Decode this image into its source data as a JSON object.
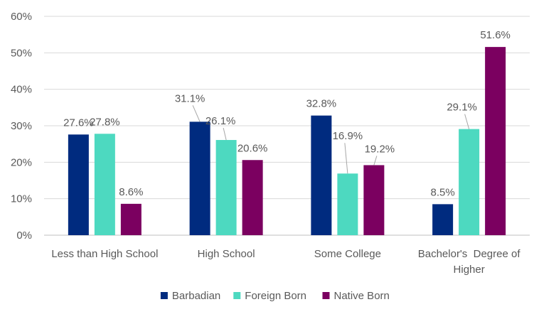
{
  "chart_data": {
    "type": "bar",
    "title": "",
    "xlabel": "",
    "ylabel": "",
    "ylim": [
      0,
      60
    ],
    "ytick_step": 10,
    "y_format": "percent",
    "grid": true,
    "legend_position": "bottom",
    "categories": [
      [
        "Less than High School"
      ],
      [
        "High School"
      ],
      [
        "Some College"
      ],
      [
        "Bachelor's  Degree of",
        "Higher"
      ]
    ],
    "series": [
      {
        "name": "Barbadian",
        "color": "#002B7F",
        "values": [
          27.6,
          31.1,
          32.8,
          8.5
        ]
      },
      {
        "name": "Foreign Born",
        "color": "#4DD9C0",
        "values": [
          27.8,
          26.1,
          16.9,
          29.1
        ]
      },
      {
        "name": "Native Born",
        "color": "#7B0060",
        "values": [
          8.6,
          20.6,
          19.2,
          51.6
        ]
      }
    ]
  }
}
